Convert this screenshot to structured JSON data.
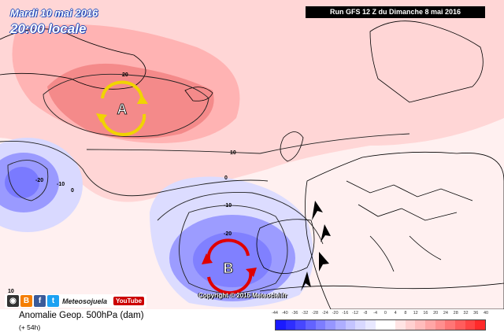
{
  "header": {
    "date": "Mardi 10 mai 2016",
    "local_time": "20:00 locale",
    "run_info": "Run GFS 12 Z du Dimanche 8 mai 2016"
  },
  "map": {
    "high_label": "A",
    "low_label": "B",
    "contour_labels": [
      "20",
      "10",
      "0",
      "-10",
      "-20",
      "-10",
      "-20",
      "0",
      "10"
    ],
    "copyright": "Copyright © 2015 Meteociel.fr"
  },
  "social": {
    "name": "Meteosojuela",
    "youtube": "YouTube"
  },
  "legend": {
    "product": "Anomalie Geop. 500hPa (dam)",
    "lead_time": "(+ 54h)",
    "scale_values": [
      "-44",
      "-40",
      "-36",
      "-32",
      "-28",
      "-24",
      "-20",
      "-16",
      "-12",
      "-8",
      "-4",
      "0",
      "4",
      "8",
      "12",
      "16",
      "20",
      "24",
      "28",
      "32",
      "36",
      "40"
    ],
    "scale_colors": [
      "#1a1aff",
      "#2e2eff",
      "#4747ff",
      "#6363ff",
      "#7d7dff",
      "#9696ff",
      "#aeaeff",
      "#c4c4ff",
      "#d8d8ff",
      "#e8e8ff",
      "#ffffff",
      "#ffffff",
      "#ffe4e4",
      "#ffd0d0",
      "#ffbcbc",
      "#ffa6a6",
      "#ff8f8f",
      "#ff7676",
      "#ff5d5d",
      "#ff4444",
      "#ff2a2a"
    ]
  }
}
